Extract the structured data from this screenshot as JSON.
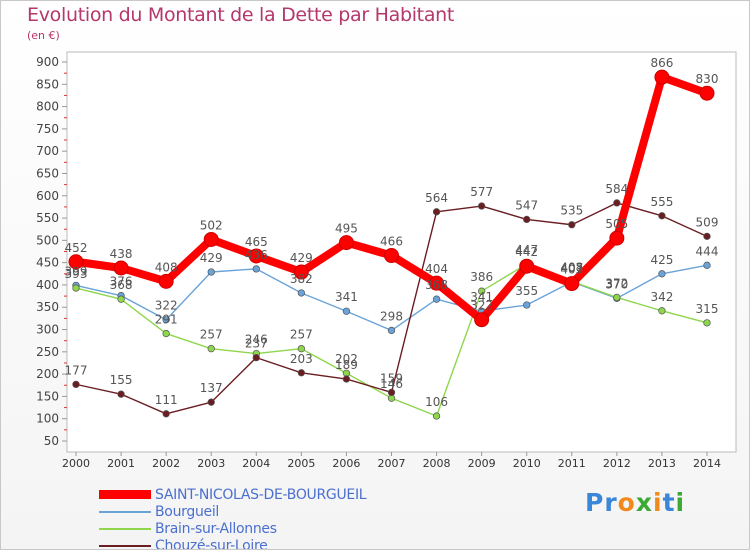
{
  "chart_data": {
    "type": "line",
    "title": "Evolution du Montant de la Dette par Habitant",
    "unit_label": "(en €)",
    "xlabel": "",
    "ylabel": "",
    "categories": [
      "2000",
      "2001",
      "2002",
      "2003",
      "2004",
      "2005",
      "2006",
      "2007",
      "2008",
      "2009",
      "2010",
      "2011",
      "2012",
      "2013",
      "2014"
    ],
    "ylim": [
      50,
      900
    ],
    "y_ticks": [
      50,
      100,
      150,
      200,
      250,
      300,
      350,
      400,
      450,
      500,
      550,
      600,
      650,
      700,
      750,
      800,
      850,
      900
    ],
    "grid": false,
    "legend_position": "bottom-left",
    "series": [
      {
        "name": "SAINT-NICOLAS-DE-BOURGUEIL",
        "color": "#ff0000",
        "values": [
          452,
          438,
          408,
          502,
          465,
          429,
          495,
          466,
          404,
          322,
          442,
          403,
          505,
          866,
          830
        ]
      },
      {
        "name": "Bourgueil",
        "color": "#6aa3d8",
        "values": [
          399,
          376,
          322,
          429,
          436,
          382,
          341,
          298,
          368,
          341,
          355,
          407,
          370,
          425,
          444
        ]
      },
      {
        "name": "Brain-sur-Allonnes",
        "color": "#8ed64c",
        "values": [
          393,
          368,
          291,
          257,
          246,
          257,
          202,
          146,
          106,
          386,
          447,
          408,
          372,
          342,
          315
        ]
      },
      {
        "name": "Chouzé-sur-Loire",
        "color": "#6b1e22",
        "values": [
          177,
          155,
          111,
          137,
          237,
          203,
          189,
          159,
          564,
          577,
          547,
          535,
          584,
          555,
          509
        ]
      }
    ]
  },
  "logo": {
    "p": "Pr",
    "o": "o",
    "x": "x",
    "i1": "i",
    "t": "t",
    "i2": "i"
  }
}
